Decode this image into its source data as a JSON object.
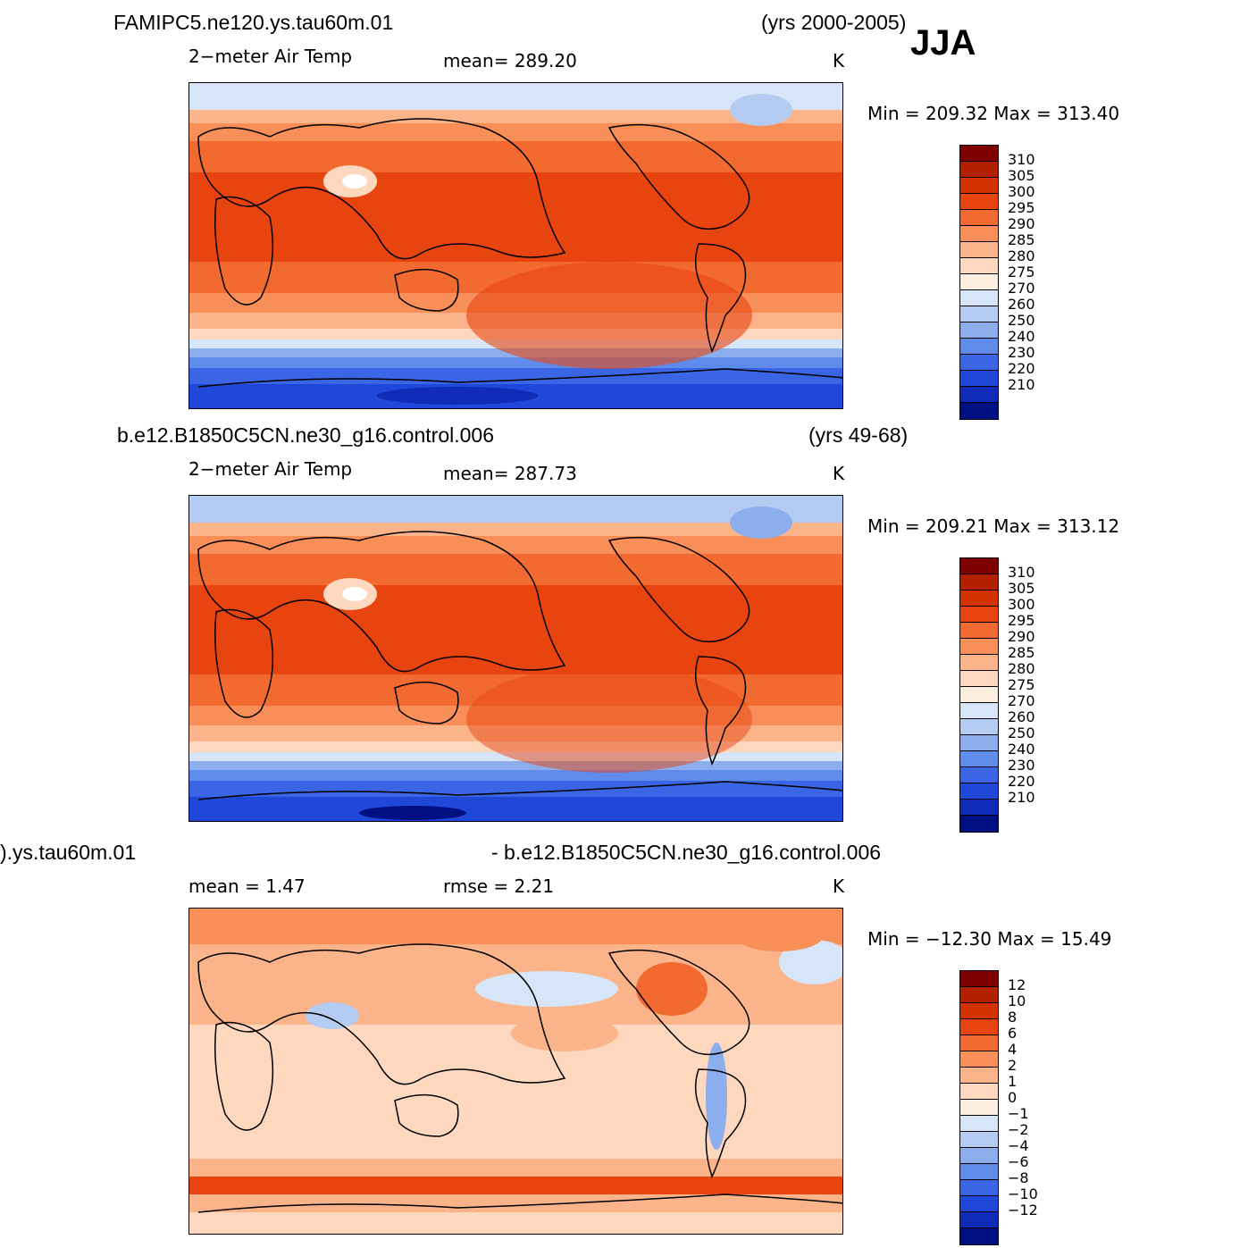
{
  "season": "JJA",
  "units": "K",
  "panels": [
    {
      "case": "FAMIPC5.ne120.ys.tau60m.01",
      "years": "(yrs 2000-2005)",
      "variable": "2−meter Air Temp",
      "mean": "mean=  289.20",
      "units": "K",
      "minmax": "Min  =  209.32  Max  =  313.40"
    },
    {
      "case": "b.e12.B1850C5CN.ne30_g16.control.006",
      "years": "(yrs 49-68)",
      "variable": "2−meter Air Temp",
      "mean": "mean=  287.73",
      "units": "K",
      "minmax": "Min  =  209.21  Max  =  313.12"
    },
    {
      "case_left": ").ys.tau60m.01",
      "case_right": "- b.e12.B1850C5CN.ne30_g16.control.006",
      "mean": "mean  =     1.47",
      "rmse": "rmse  =     2.21",
      "units": "K",
      "minmax": "Min  =  −12.30  Max  =    15.49"
    }
  ],
  "colorbar_abs": {
    "labels": [
      "310",
      "305",
      "300",
      "295",
      "290",
      "285",
      "280",
      "275",
      "270",
      "260",
      "250",
      "240",
      "230",
      "220",
      "210"
    ],
    "colors": [
      "#7f0000",
      "#b22000",
      "#d43300",
      "#e84410",
      "#f26a30",
      "#f88e58",
      "#fbb48a",
      "#fdd8bf",
      "#fbeede",
      "#d6e6f8",
      "#b4ccf2",
      "#8caeec",
      "#5f8ceb",
      "#3a66e6",
      "#1f48d9",
      "#0f2bb8",
      "#000f82"
    ]
  },
  "colorbar_diff": {
    "labels": [
      "12",
      "10",
      "8",
      "6",
      "4",
      "2",
      "1",
      "0",
      "−1",
      "−2",
      "−4",
      "−6",
      "−8",
      "−10",
      "−12"
    ],
    "colors": [
      "#7f0000",
      "#b22000",
      "#d43300",
      "#e84410",
      "#f26a30",
      "#f88e58",
      "#fbb48a",
      "#fdd8bf",
      "#fbeede",
      "#d6e6f8",
      "#b4ccf2",
      "#8caeec",
      "#5f8ceb",
      "#3a66e6",
      "#1f48d9",
      "#0f2bb8",
      "#000f82"
    ]
  }
}
